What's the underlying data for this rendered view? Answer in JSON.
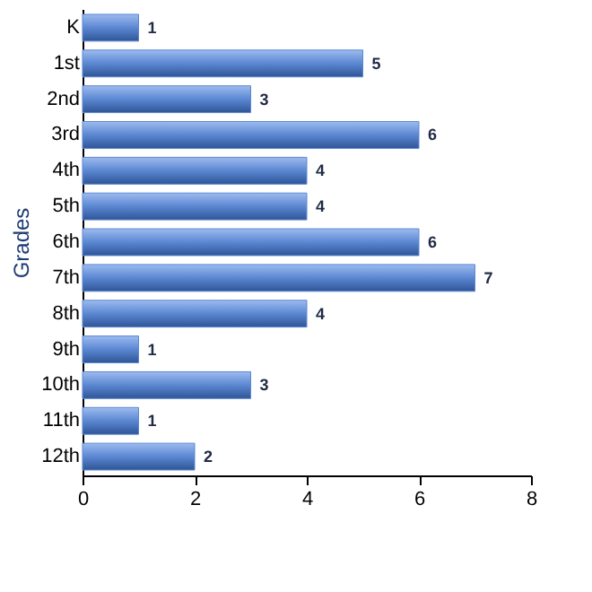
{
  "chart_data": {
    "type": "bar",
    "orientation": "horizontal",
    "ylabel": "Grades",
    "categories": [
      "K",
      "1st",
      "2nd",
      "3rd",
      "4th",
      "5th",
      "6th",
      "7th",
      "8th",
      "9th",
      "10th",
      "11th",
      "12th"
    ],
    "values": [
      1,
      5,
      3,
      6,
      4,
      4,
      6,
      7,
      4,
      1,
      3,
      1,
      2
    ],
    "color": "#5b87d2",
    "xlim": [
      0,
      8
    ],
    "xticks": [
      0,
      2,
      4,
      6,
      8
    ],
    "data_labels": true,
    "grid": false
  }
}
